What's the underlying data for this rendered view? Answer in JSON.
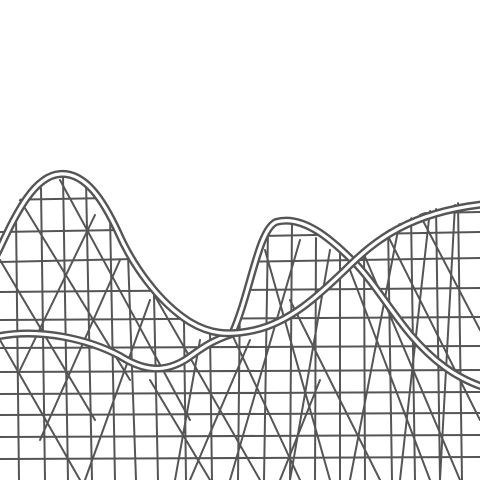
{
  "scene": {
    "subject": "roller-coaster-track-drawing",
    "style": "monochrome line drawing",
    "colors": {
      "background": "#ffffff",
      "line": "#555555",
      "rail_fill": "#ffffff"
    }
  }
}
